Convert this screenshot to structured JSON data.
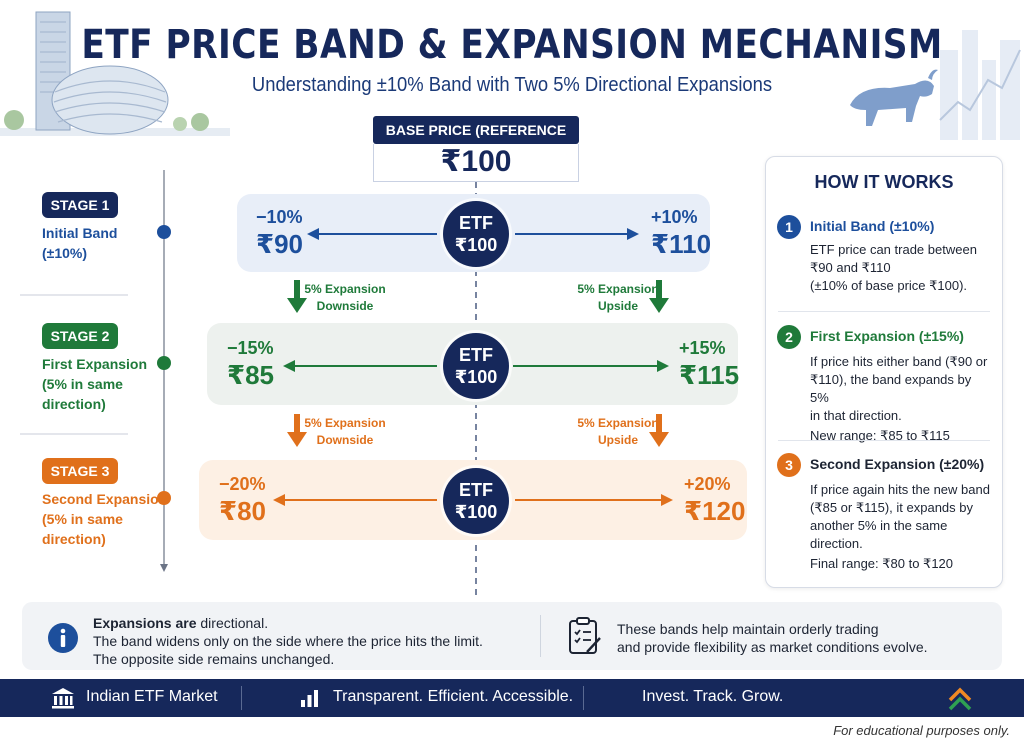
{
  "header": {
    "title": "ETF PRICE BAND & EXPANSION MECHANISM",
    "subtitle": "Understanding ±10% Band with Two 5% Directional Expansions"
  },
  "base": {
    "label": "BASE PRICE (REFERENCE PRICE)",
    "value": "₹100"
  },
  "stages": [
    {
      "pill": "STAGE 1",
      "desc_lines": [
        "Initial Band",
        "(±10%)"
      ],
      "color": "#16285b"
    },
    {
      "pill": "STAGE 2",
      "desc_lines": [
        "First Expansion",
        "(5% in same",
        "direction)"
      ],
      "color": "#1f7a3a"
    },
    {
      "pill": "STAGE 3",
      "desc_lines": [
        "Second Expansion",
        "(5% in same",
        "direction)"
      ],
      "color": "#e0701b"
    }
  ],
  "bands": [
    {
      "left_pct": "−10%",
      "left_price": "₹90",
      "right_pct": "+10%",
      "right_price": "₹110",
      "etf_label": "ETF",
      "etf_price": "₹100",
      "color": "#1d4f9c",
      "bg": "#e8eef8"
    },
    {
      "left_pct": "−15%",
      "left_price": "₹85",
      "right_pct": "+15%",
      "right_price": "₹115",
      "etf_label": "ETF",
      "etf_price": "₹100",
      "color": "#1f7a3a",
      "bg": "#edf1ee"
    },
    {
      "left_pct": "−20%",
      "left_price": "₹80",
      "right_pct": "+20%",
      "right_price": "₹120",
      "etf_label": "ETF",
      "etf_price": "₹100",
      "color": "#e0701b",
      "bg": "#fdf0e4"
    }
  ],
  "expansions": [
    {
      "left_lines": [
        "5% Expansion",
        "Downside"
      ],
      "right_lines": [
        "5% Expansion",
        "Upside"
      ],
      "color": "#1f7a3a"
    },
    {
      "left_lines": [
        "5% Expansion",
        "Downside"
      ],
      "right_lines": [
        "5% Expansion",
        "Upside"
      ],
      "color": "#e0701b"
    }
  ],
  "how_it_works": {
    "title": "HOW IT WORKS",
    "items": [
      {
        "num": "1",
        "head": "Initial Band (±10%)",
        "color": "#1d4f9c",
        "body": [
          "ETF price can trade between",
          "₹90 and ₹110",
          "(±10% of base price ₹100)."
        ]
      },
      {
        "num": "2",
        "head": "First Expansion (±15%)",
        "color": "#1f7a3a",
        "body": [
          "If price hits either band (₹90 or",
          "₹110), the band expands by 5%",
          "in that direction.",
          "New range: ₹85 to ₹115"
        ]
      },
      {
        "num": "3",
        "head": "Second Expansion (±20%)",
        "color": "#e0701b",
        "body": [
          "If price again hits the new band",
          "(₹85 or ₹115), it expands by",
          "another 5% in the same",
          "direction.",
          "Final range: ₹80 to ₹120"
        ]
      }
    ]
  },
  "note": {
    "left_bold": "Expansions are",
    "left_rest": " directional.",
    "left_lines": [
      "The band widens only on the side where the price hits the limit.",
      "The opposite side remains unchanged."
    ],
    "right_lines": [
      "These bands help maintain orderly trading",
      "and provide flexibility as market conditions evolve."
    ]
  },
  "footer": {
    "items": [
      "Indian ETF Market",
      "Transparent. Efficient. Accessible.",
      "Invest. Track. Grow."
    ],
    "icons": [
      "institution-icon",
      "bar-chart-icon",
      "growth-chevron-icon"
    ]
  },
  "disclaimer": "For educational purposes only.",
  "colors": {
    "navy": "#16285b",
    "blue": "#1d4f9c",
    "green": "#1f7a3a",
    "orange": "#e0701b"
  }
}
